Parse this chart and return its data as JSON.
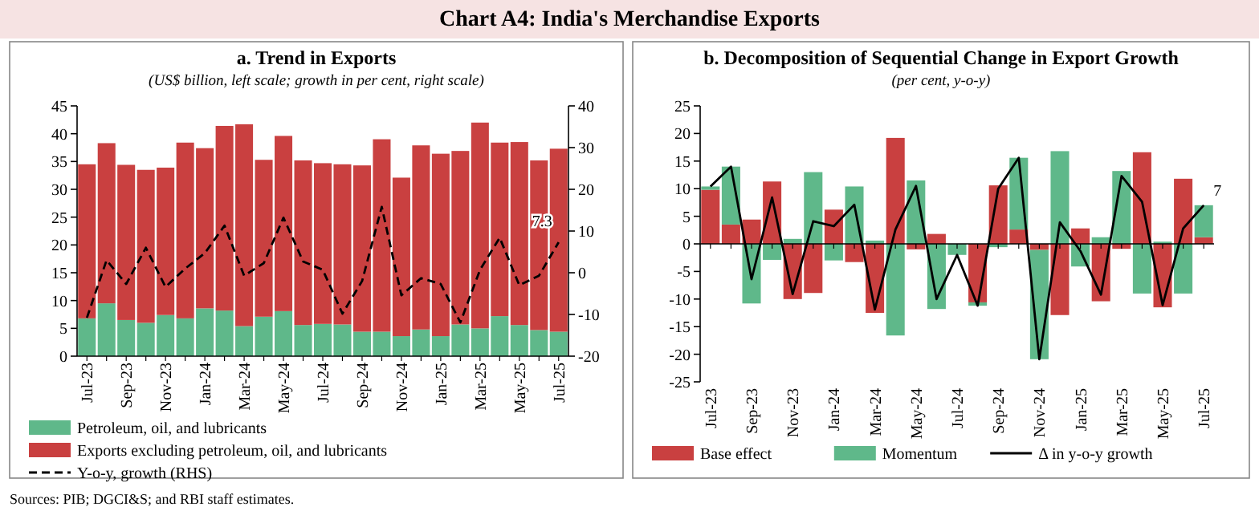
{
  "chart_data": [
    {
      "type": "bar",
      "title": "a. Trend in Exports",
      "subtitle": "(US$ billion, left scale; growth in per cent, right scale)",
      "annotations": [
        "Chart A4: India's Merchandise Exports"
      ],
      "categories": [
        "Jul-23",
        null,
        "Sep-23",
        null,
        "Nov-23",
        null,
        "Jan-24",
        null,
        "Mar-24",
        null,
        "May-24",
        null,
        "Jul-24",
        null,
        "Sep-24",
        null,
        "Nov-24",
        null,
        "Jan-25",
        null,
        "Mar-25",
        null,
        "May-25",
        null,
        "Jul-25"
      ],
      "stacked": true,
      "legend": "bottom",
      "ylim": [
        0,
        45
      ],
      "yticks": [
        0,
        5,
        10,
        15,
        20,
        25,
        30,
        35,
        40,
        45
      ],
      "y2lim": [
        -20,
        40
      ],
      "y2ticks": [
        -20,
        -10,
        0,
        10,
        20,
        30,
        40
      ],
      "series": [
        {
          "name": "Petroleum, oil, and lubricants",
          "color": "#5fb88a",
          "values": [
            6.8,
            9.5,
            6.5,
            6.0,
            7.4,
            6.8,
            8.6,
            8.2,
            5.4,
            7.1,
            8.1,
            5.6,
            5.8,
            5.7,
            4.4,
            4.4,
            3.6,
            4.8,
            3.6,
            5.7,
            5.0,
            7.2,
            5.6,
            4.7,
            4.4
          ]
        },
        {
          "name": "Exports excluding petroleum, oil, and lubricants",
          "color": "#c94040",
          "values": [
            27.7,
            28.8,
            27.9,
            27.5,
            26.5,
            31.6,
            28.8,
            33.2,
            36.3,
            28.2,
            31.5,
            29.6,
            28.9,
            28.8,
            29.9,
            34.6,
            28.5,
            33.1,
            32.8,
            31.2,
            37.0,
            31.2,
            32.9,
            30.5,
            32.9
          ]
        },
        {
          "name": "Y-o-y, growth (RHS)",
          "type": "line",
          "axis": "y2",
          "color": "#000000",
          "line_style": "dashed",
          "values": [
            -10.8,
            3.0,
            -2.7,
            6.0,
            -3.4,
            1.0,
            4.7,
            11.3,
            -0.7,
            2.3,
            13.2,
            2.7,
            0.7,
            -9.8,
            -2.0,
            15.8,
            -5.4,
            -1.3,
            -2.7,
            -11.9,
            0.7,
            8.4,
            -3.0,
            -0.7,
            7.3
          ],
          "value_labels": [
            null,
            null,
            null,
            null,
            null,
            null,
            null,
            null,
            null,
            null,
            null,
            null,
            null,
            null,
            null,
            null,
            null,
            null,
            null,
            null,
            null,
            null,
            null,
            null,
            "7.3"
          ]
        }
      ]
    },
    {
      "type": "bar",
      "title": "b. Decomposition of Sequential Change in Export Growth",
      "subtitle": "(per cent, y-o-y)",
      "annotations": [
        "Sources: PIB; DGCI&S; and RBI staff estimates."
      ],
      "categories": [
        "Jul-23",
        null,
        "Sep-23",
        null,
        "Nov-23",
        null,
        "Jan-24",
        null,
        "Mar-24",
        null,
        "May-24",
        null,
        "Jul-24",
        null,
        "Sep-24",
        null,
        "Nov-24",
        null,
        "Jan-25",
        null,
        "Mar-25",
        null,
        "May-25",
        null,
        "Jul-25"
      ],
      "stacked": true,
      "legend": "bottom",
      "ylim": [
        -25,
        25
      ],
      "yticks": [
        -25,
        -20,
        -15,
        -10,
        -5,
        0,
        5,
        10,
        15,
        20,
        25
      ],
      "series": [
        {
          "name": "Base effect",
          "color": "#c94040",
          "values": [
            9.8,
            3.5,
            4.4,
            11.3,
            -10.0,
            -8.9,
            6.2,
            -3.3,
            -12.5,
            19.2,
            -1.0,
            1.8,
            0.0,
            -10.6,
            10.6,
            2.6,
            -1.1,
            -12.9,
            2.8,
            -10.4,
            -0.9,
            16.6,
            -11.5,
            11.8,
            1.2
          ]
        },
        {
          "name": "Momentum",
          "color": "#5fb88a",
          "values": [
            0.6,
            10.5,
            -10.8,
            -2.9,
            0.9,
            13.0,
            -3.0,
            10.4,
            0.6,
            -16.6,
            11.5,
            -11.8,
            -2.0,
            -0.6,
            -0.6,
            13.0,
            -19.8,
            16.8,
            -4.1,
            1.2,
            13.2,
            -9.0,
            0.4,
            -9.0,
            5.8
          ]
        },
        {
          "name": "Δ in y-o-y growth",
          "type": "line",
          "color": "#000000",
          "line_style": "solid",
          "values": [
            10.4,
            14.0,
            -6.4,
            8.4,
            -9.1,
            4.1,
            3.2,
            7.1,
            -11.9,
            2.6,
            10.5,
            -10.0,
            -2.0,
            -11.2,
            10.0,
            15.6,
            -20.9,
            3.9,
            -1.3,
            -9.2,
            12.3,
            7.6,
            -11.1,
            2.8,
            7.0
          ],
          "value_labels": [
            null,
            null,
            null,
            null,
            null,
            null,
            null,
            null,
            null,
            null,
            null,
            null,
            null,
            null,
            null,
            null,
            null,
            null,
            null,
            null,
            null,
            null,
            null,
            null,
            "7"
          ]
        }
      ]
    }
  ]
}
